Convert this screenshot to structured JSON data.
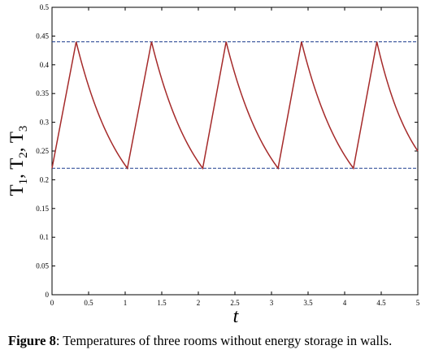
{
  "chart_data": {
    "type": "line",
    "xlabel": "t",
    "ylabel": "T",
    "ylabel_subscripts": [
      "1",
      "2",
      "3"
    ],
    "xlim": [
      0,
      5
    ],
    "ylim": [
      0,
      0.5
    ],
    "x_ticks": [
      "0",
      "0.5",
      "1",
      "1.5",
      "2",
      "2.5",
      "3",
      "3.5",
      "4",
      "4.5",
      "5"
    ],
    "y_ticks": [
      "0",
      "0.05",
      "0.1",
      "0.15",
      "0.2",
      "0.25",
      "0.3",
      "0.35",
      "0.4",
      "0.45",
      "0.5"
    ],
    "grid": false,
    "reference_lines": [
      0.44,
      0.22
    ],
    "series_color": "#a52a2a",
    "reference_color": "#1f3f8f",
    "peaks": [
      [
        0.33,
        0.44
      ],
      [
        1.36,
        0.44
      ],
      [
        2.38,
        0.44
      ],
      [
        3.41,
        0.44
      ],
      [
        4.44,
        0.44
      ]
    ],
    "troughs": [
      [
        1.03,
        0.22
      ],
      [
        2.06,
        0.22
      ],
      [
        3.09,
        0.22
      ],
      [
        4.12,
        0.22
      ]
    ],
    "start": [
      0,
      0.22
    ],
    "end": [
      5,
      0.25
    ]
  },
  "caption": {
    "label": "Figure 8",
    "text": ": Temperatures of three rooms without energy storage in walls."
  }
}
